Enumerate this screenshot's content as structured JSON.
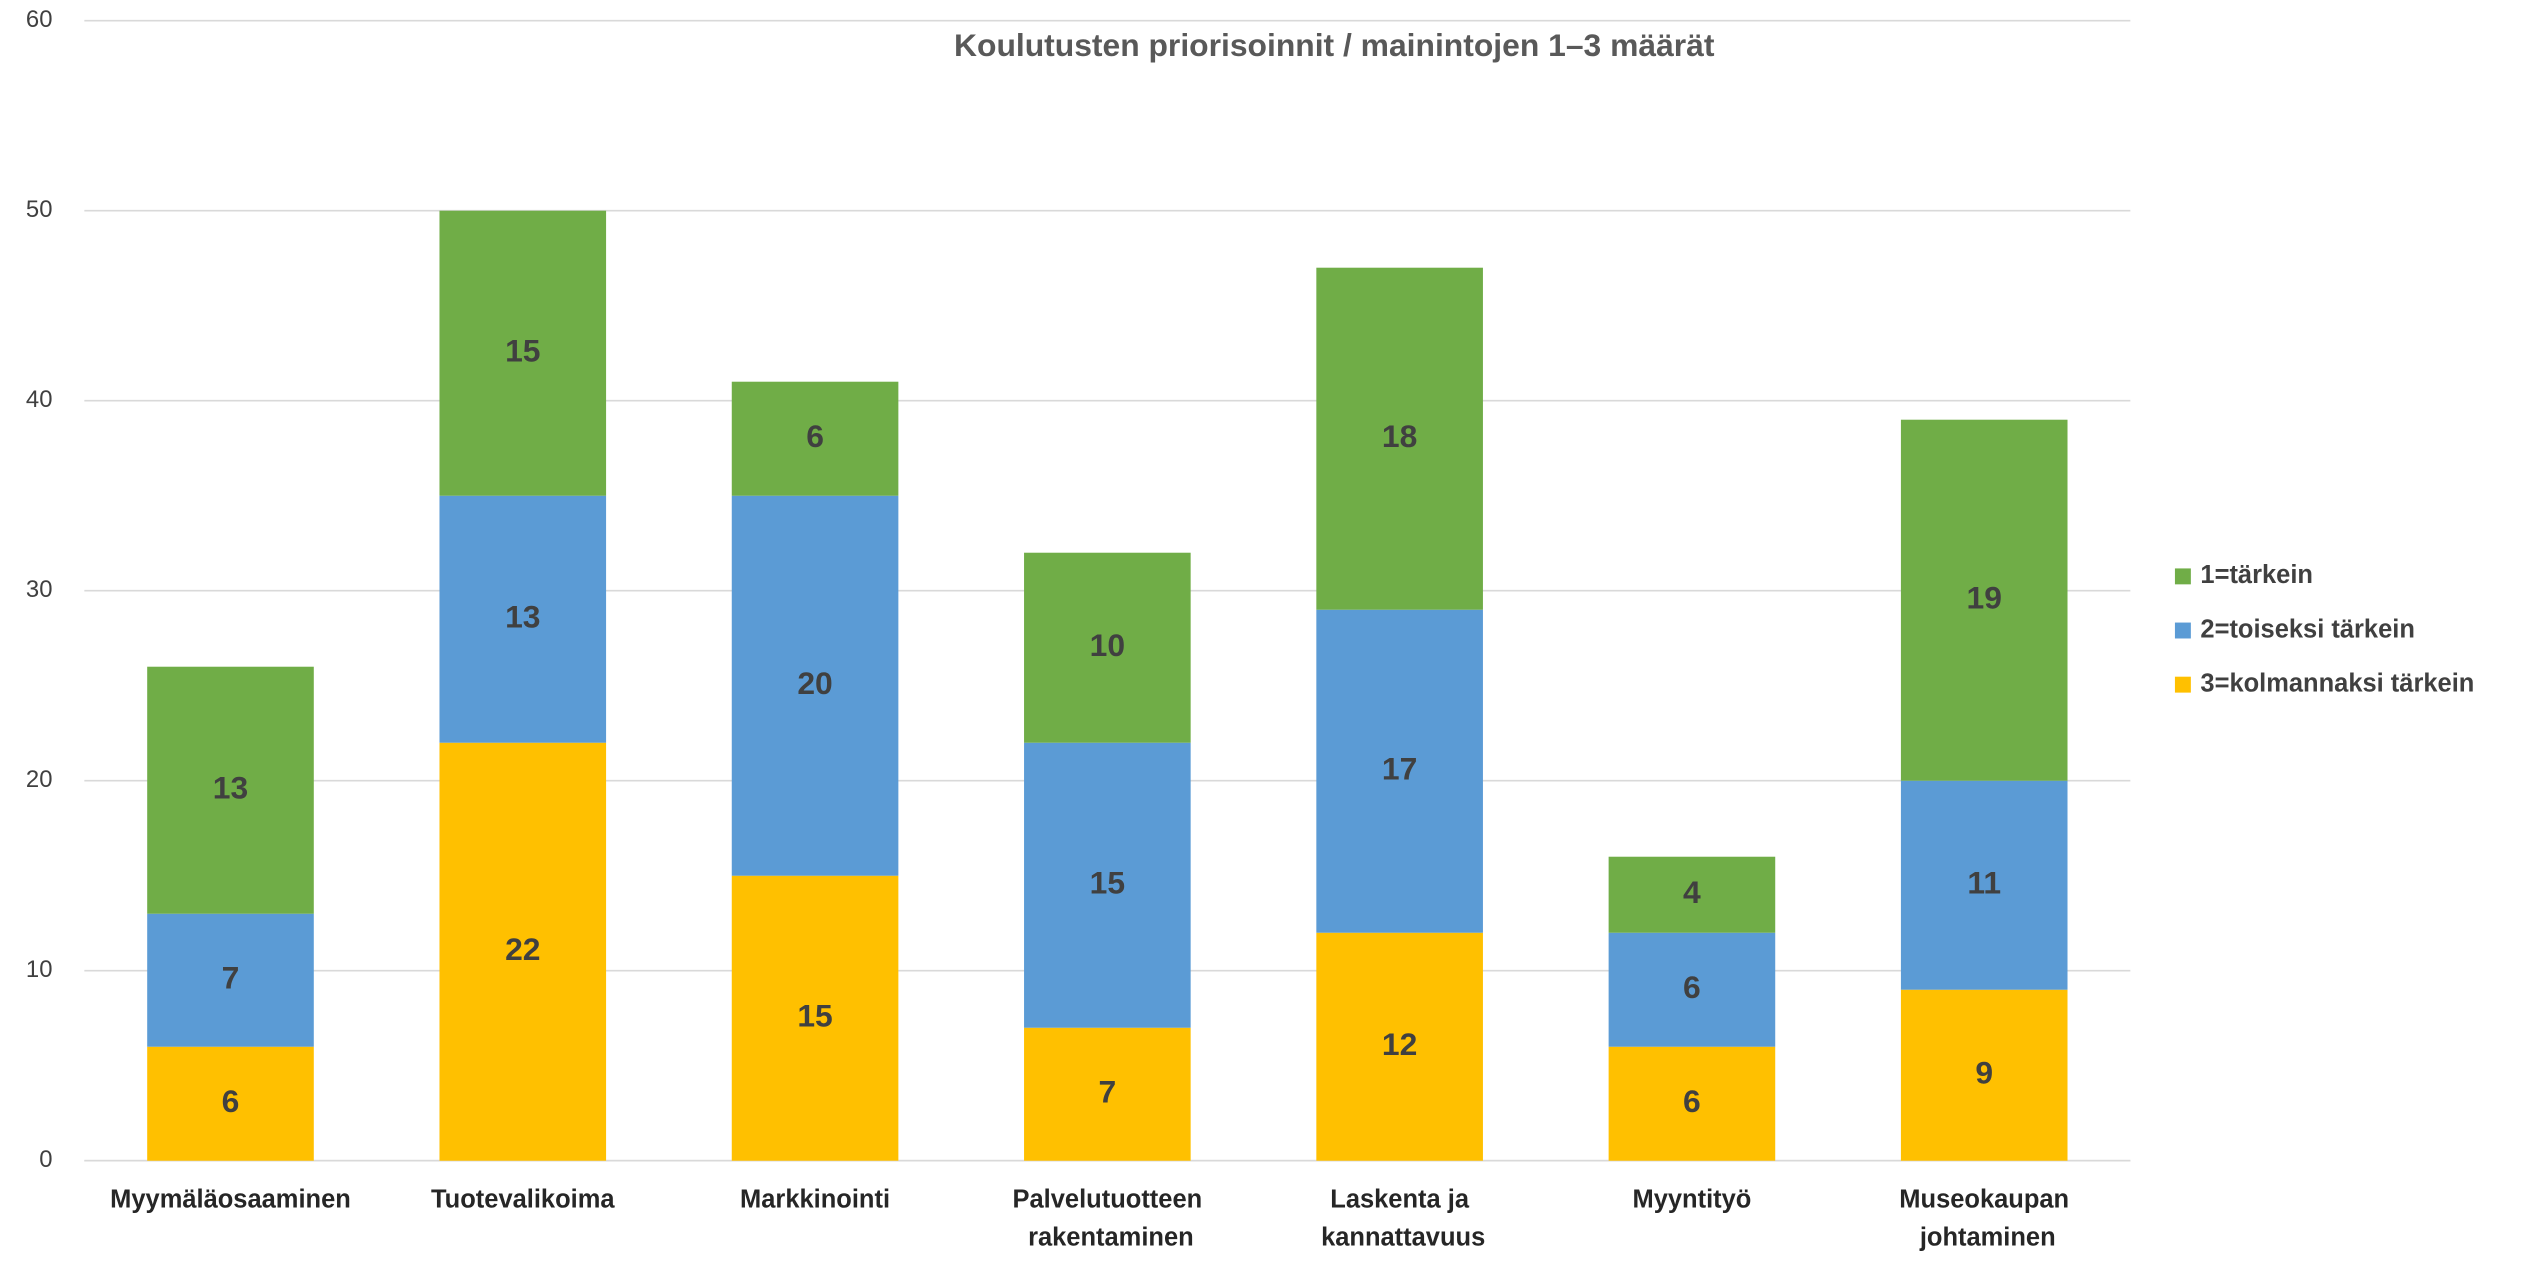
{
  "chart_data": {
    "type": "stacked_bar",
    "title": "Koulutusten priorisoinnit / mainintojen 1–3 määrät",
    "categories": [
      "Myymäläosaaminen",
      "Tuotevalikoima",
      "Markkinointi",
      "Palvelutuotteen rakentaminen",
      "Laskenta ja kannattavuus",
      "Myyntityö",
      "Museokaupan johtaminen"
    ],
    "series": [
      {
        "name": "3=kolmannaksi tärkein",
        "color": "#ffc000",
        "values": [
          6,
          22,
          15,
          7,
          12,
          6,
          9
        ]
      },
      {
        "name": "2=toiseksi tärkein",
        "color": "#5b9bd5",
        "values": [
          7,
          13,
          20,
          15,
          17,
          6,
          11
        ]
      },
      {
        "name": "1=tärkein",
        "color": "#70ad47",
        "values": [
          13,
          15,
          6,
          10,
          18,
          4,
          19
        ]
      }
    ],
    "ylim": [
      0,
      60
    ],
    "yticks": [
      0,
      10,
      20,
      30,
      40,
      50,
      60
    ],
    "grid": true,
    "legend": "right"
  }
}
